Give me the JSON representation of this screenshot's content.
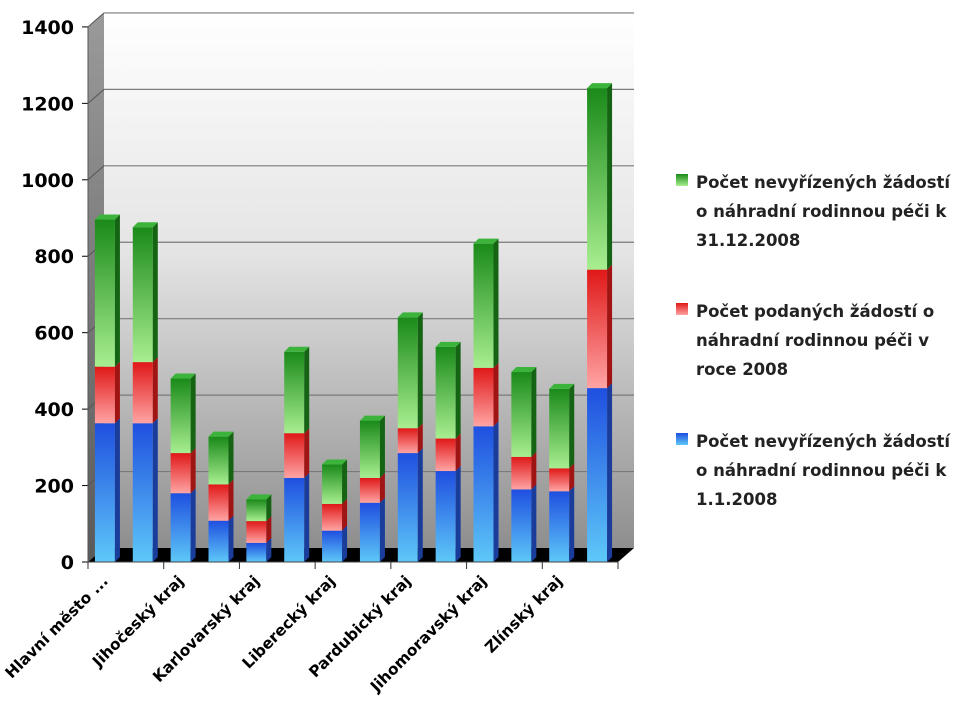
{
  "chart_data": {
    "type": "bar",
    "stacked": true,
    "three_d": true,
    "categories": [
      "Hlavní město ...",
      "",
      "Jihočeský kraj",
      "",
      "Karlovarský kraj",
      "",
      "Liberecký kraj",
      "",
      "Pardubický kraj",
      "",
      "Jihomoravský kraj",
      "",
      "Zlínský kraj",
      ""
    ],
    "series": [
      {
        "name": "Počet nevyřízených žádostí o náhradní rodinnou péči k 1.1.2008",
        "color": "#2b6fe6",
        "values": [
          363,
          363,
          180,
          108,
          50,
          220,
          82,
          155,
          285,
          238,
          355,
          190,
          185,
          455
        ]
      },
      {
        "name": "Počet podaných žádostí o náhradní rodinnou péči v roce 2008",
        "color": "#e63030",
        "values": [
          148,
          160,
          105,
          95,
          57,
          117,
          70,
          65,
          65,
          85,
          153,
          85,
          60,
          310
        ]
      },
      {
        "name": "Počet nevyřízených žádostí o náhradní rodinnou péči k 31.12.2008",
        "color": "#2a9a2a",
        "values": [
          385,
          353,
          195,
          125,
          57,
          213,
          103,
          150,
          290,
          240,
          325,
          222,
          208,
          475
        ]
      }
    ],
    "yticks": [
      0,
      200,
      400,
      600,
      800,
      1000,
      1200,
      1400
    ],
    "ylim": [
      0,
      1400
    ],
    "grid": true,
    "legend_position": "right"
  }
}
